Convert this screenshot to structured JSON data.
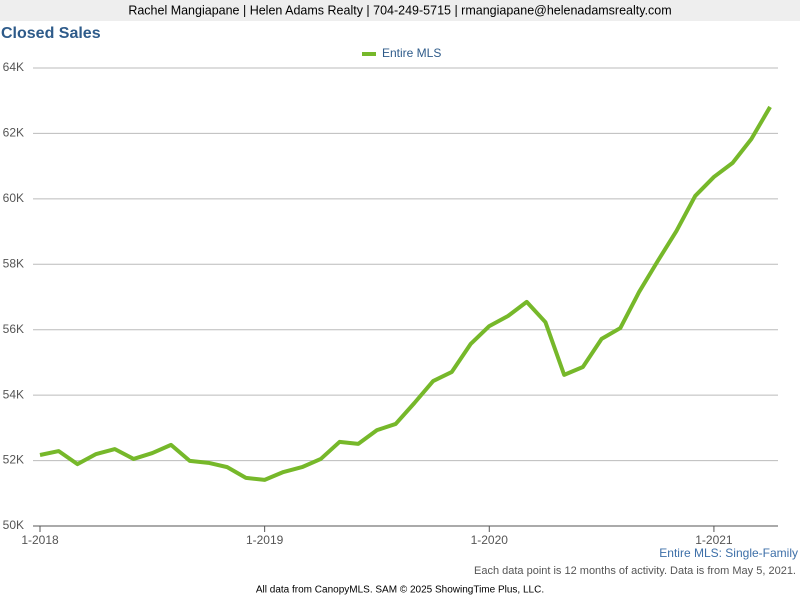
{
  "header": "Rachel Mangiapane | Helen Adams Realty | 704-249-5715 | rmangiapane@helenadamsrealty.com",
  "chart_data": {
    "type": "line",
    "title": "Closed Sales",
    "categories": [
      "1-2018",
      null,
      null,
      null,
      null,
      null,
      null,
      null,
      null,
      null,
      null,
      null,
      "1-2019",
      null,
      null,
      null,
      null,
      null,
      null,
      null,
      null,
      null,
      null,
      null,
      "1-2020",
      null,
      null,
      null,
      null,
      null,
      null,
      null,
      null,
      null,
      null,
      null,
      "1-2021",
      null,
      null,
      null
    ],
    "series": [
      {
        "name": "Entire MLS",
        "color": "#76b82a",
        "values": [
          52170,
          52290,
          51890,
          52200,
          52350,
          52050,
          52230,
          52480,
          51990,
          51930,
          51800,
          51470,
          51410,
          51650,
          51800,
          52050,
          52570,
          52510,
          52930,
          53120,
          53760,
          54430,
          54710,
          55560,
          56110,
          56420,
          56850,
          56230,
          54620,
          54860,
          55720,
          56050,
          57150,
          58100,
          59020,
          60090,
          60670,
          61100,
          61830,
          62810
        ]
      }
    ],
    "ylim": [
      50000,
      64000
    ],
    "yticks": [
      {
        "value": 50000,
        "label": "50K"
      },
      {
        "value": 52000,
        "label": "52K"
      },
      {
        "value": 54000,
        "label": "54K"
      },
      {
        "value": 56000,
        "label": "56K"
      },
      {
        "value": 58000,
        "label": "58K"
      },
      {
        "value": 60000,
        "label": "60K"
      },
      {
        "value": 62000,
        "label": "62K"
      },
      {
        "value": 64000,
        "label": "64K"
      }
    ],
    "grid": true,
    "legend": "top",
    "annotation": "Entire MLS: Single-Family"
  },
  "footer": {
    "note": "Each data point is 12 months of activity. Data is from May 5, 2021.",
    "credit": "All data from CanopyMLS. SAM © 2025 ShowingTime Plus, LLC."
  }
}
